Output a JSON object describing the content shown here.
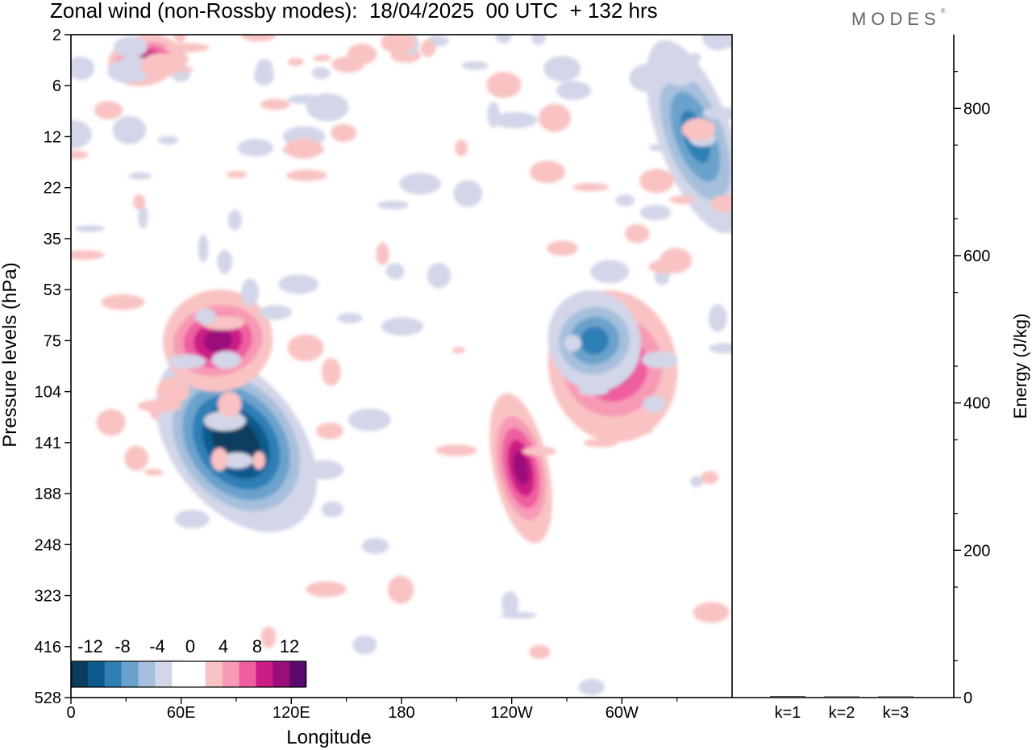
{
  "header": {
    "title": "Zonal wind (non-Rossby modes):  18/04/2025  00 UTC  + 132 hrs",
    "brand": "MODES"
  },
  "chart_data": [
    {
      "type": "heatmap",
      "title": "Zonal wind (non-Rossby modes):  18/04/2025  00 UTC  + 132 hrs",
      "xlabel": "Longitude",
      "ylabel": "Pressure levels (hPa)",
      "x_ticks": [
        "0",
        "60E",
        "120E",
        "180",
        "120W",
        "60W"
      ],
      "x_tick_values": [
        0,
        60,
        120,
        180,
        240,
        300
      ],
      "xlim": [
        0,
        360
      ],
      "y_ticks": [
        "2",
        "6",
        "12",
        "22",
        "35",
        "53",
        "75",
        "104",
        "141",
        "188",
        "248",
        "323",
        "416",
        "528"
      ],
      "y_axis_order": "top-to-bottom",
      "colorbar": {
        "labels": [
          "-12",
          "-8",
          "-4",
          "0",
          "4",
          "8",
          "12"
        ],
        "colors": [
          "#0c3c5e",
          "#0f5a8c",
          "#2d7fb6",
          "#6aa2cc",
          "#a6bfdc",
          "#d2d6e8",
          "#ffffff",
          "#ffffff",
          "#f9c3c3",
          "#f79ab5",
          "#ef5fa0",
          "#cc1c86",
          "#9a0e7a",
          "#5a0a6e"
        ]
      },
      "features": [
        {
          "sign": "negative",
          "peak": -13,
          "lon": [
            55,
            125
          ],
          "level": [
            75,
            248
          ],
          "desc": "tilted jet-like minimum"
        },
        {
          "sign": "positive",
          "peak": 9,
          "lon": [
            50,
            110
          ],
          "level": [
            53,
            104
          ]
        },
        {
          "sign": "positive",
          "peak": 10,
          "lon": [
            230,
            260
          ],
          "level": [
            104,
            248
          ]
        },
        {
          "sign": "positive",
          "peak": 7,
          "lon": [
            260,
            330
          ],
          "level": [
            53,
            141
          ]
        },
        {
          "sign": "negative",
          "peak": -7,
          "lon": [
            260,
            310
          ],
          "level": [
            53,
            104
          ]
        },
        {
          "sign": "negative",
          "peak": -7,
          "lon": [
            320,
            360
          ],
          "level": [
            2,
            35
          ]
        },
        {
          "sign": "positive",
          "peak": 9,
          "lon": [
            20,
            60
          ],
          "level": [
            2,
            6
          ]
        }
      ],
      "legend": "bottom-left"
    },
    {
      "type": "bar",
      "ylabel": "Energy (J/kg)",
      "categories": [
        "k=1",
        "k=2",
        "k=3"
      ],
      "values": [
        2,
        1,
        1
      ],
      "ylim": [
        0,
        900
      ],
      "y_ticks": [
        "0",
        "200",
        "400",
        "600",
        "800"
      ]
    }
  ]
}
